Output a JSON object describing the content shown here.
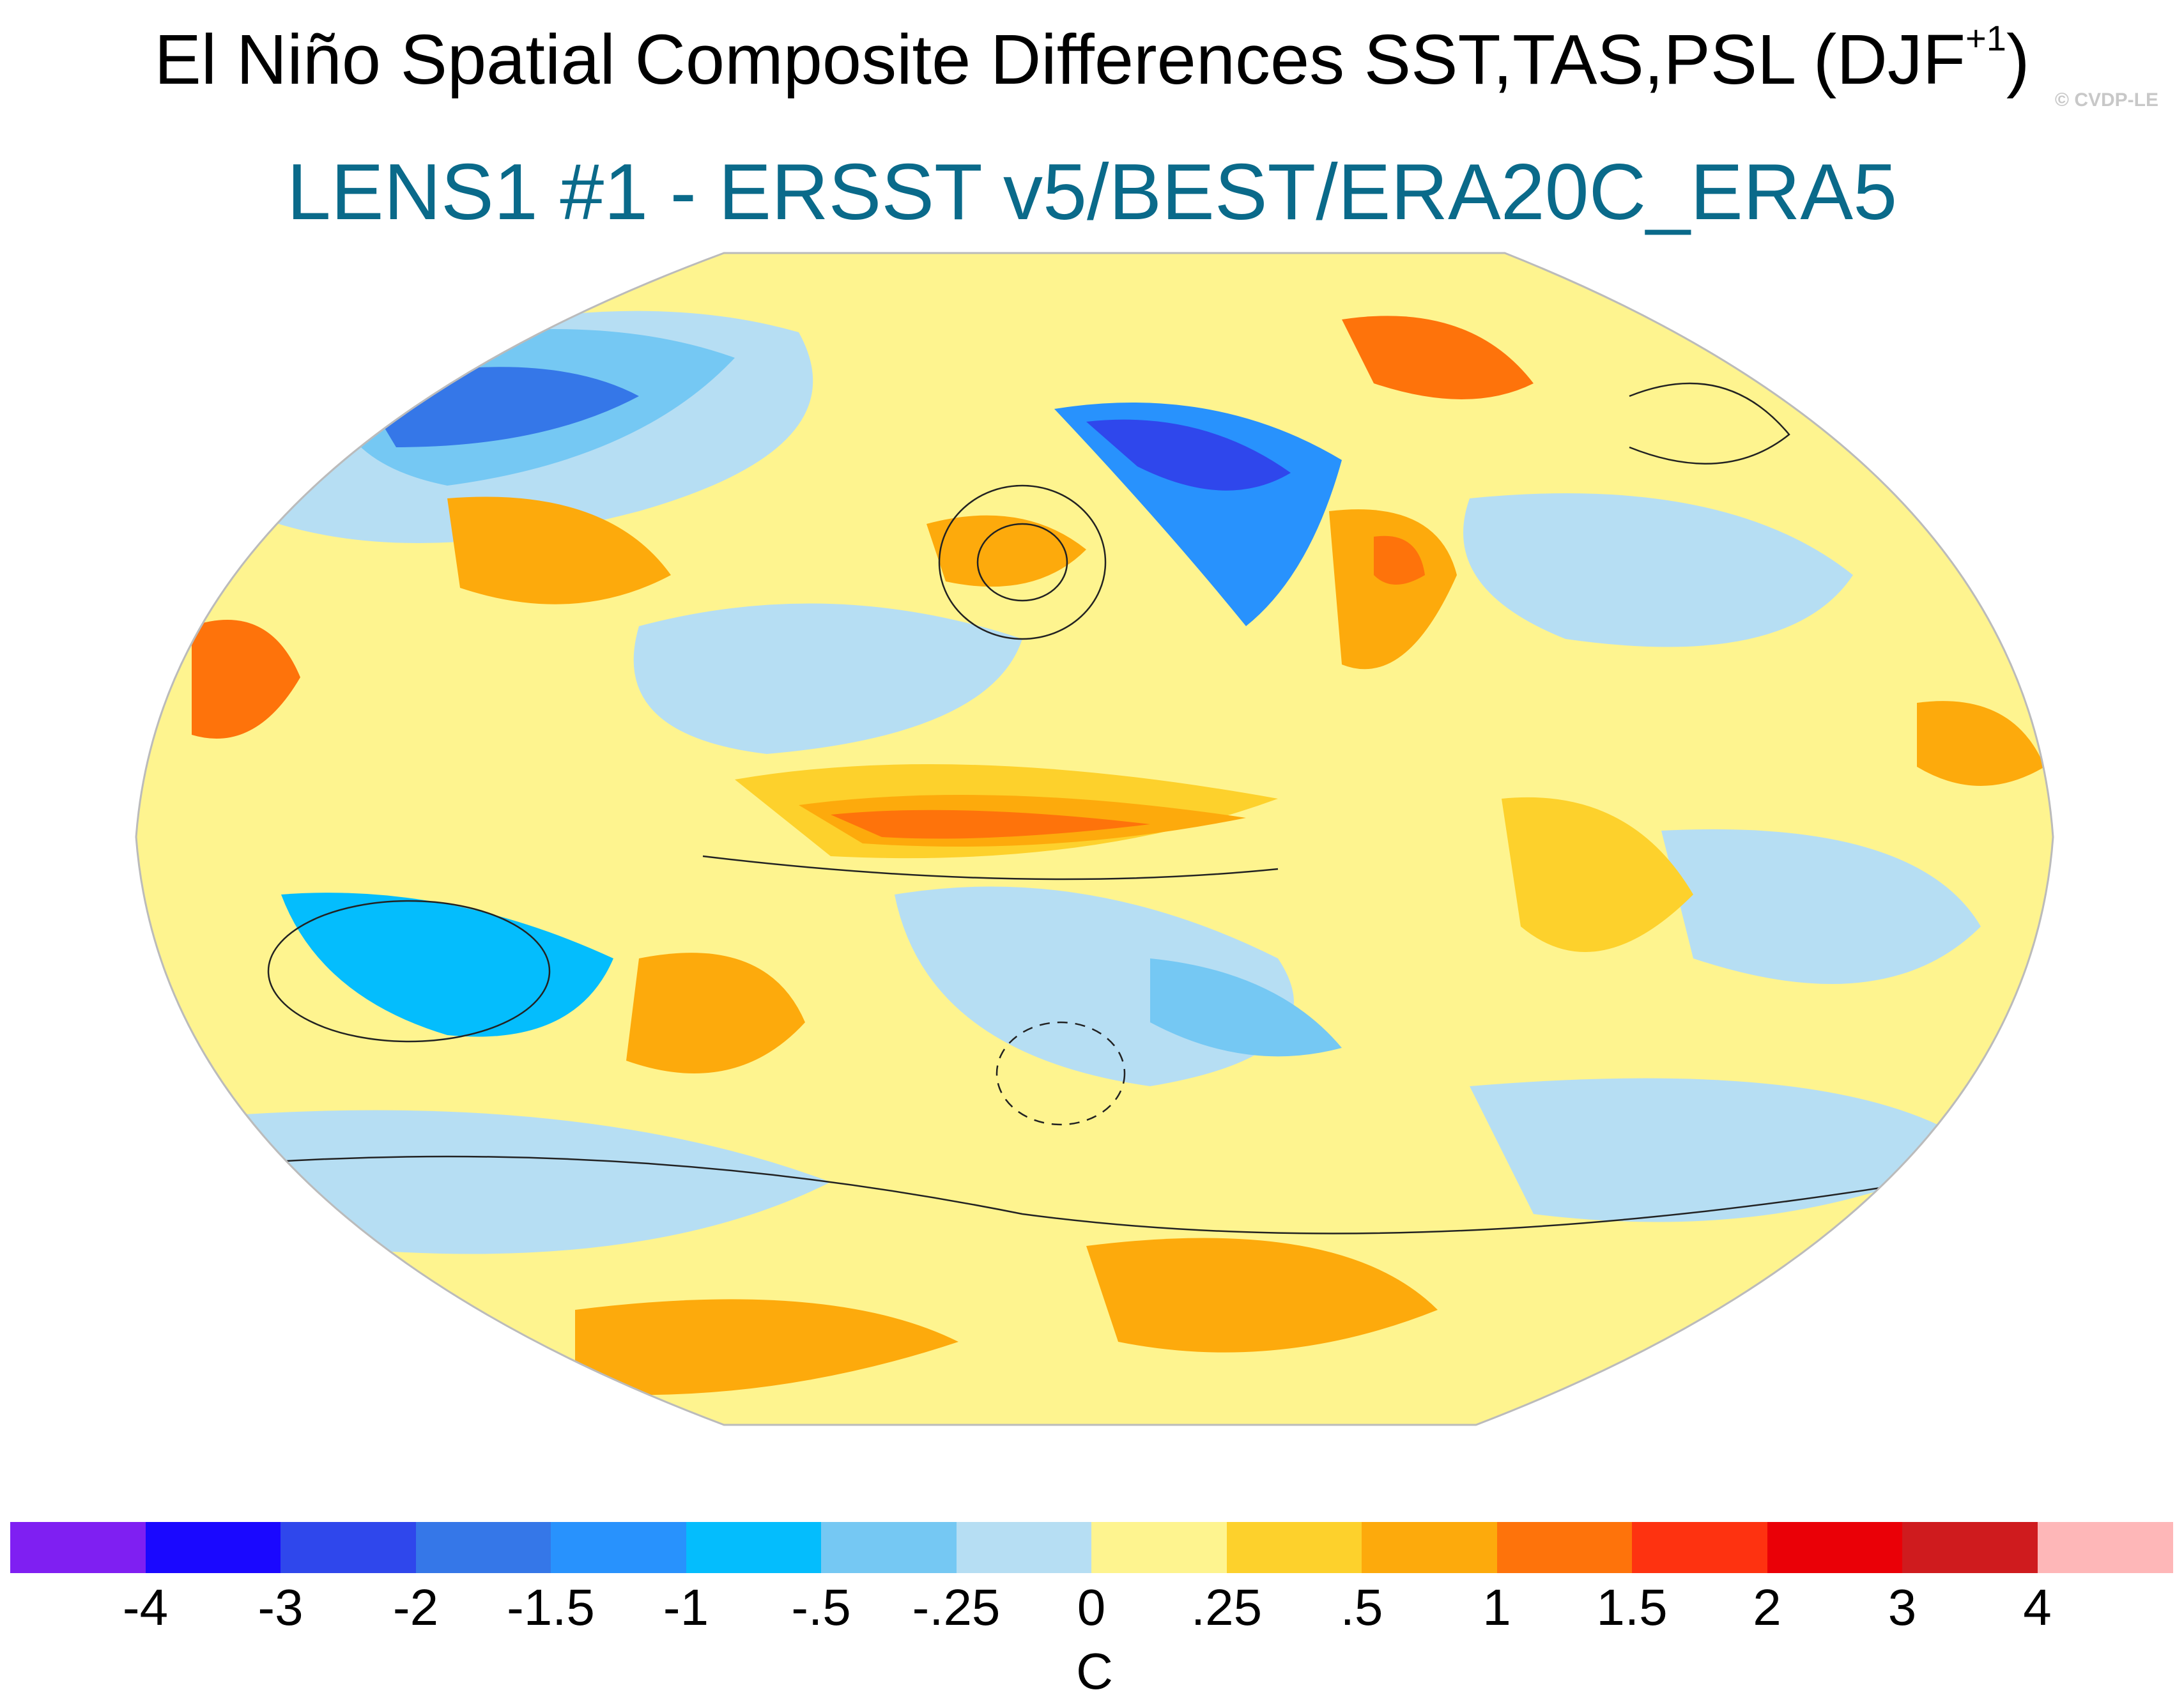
{
  "title": {
    "main": "El Niño Spatial Composite Differences SST,TAS,PSL (DJF",
    "superscript": "+1",
    "close": ")"
  },
  "subtitle": "LENS1 #1 - ERSST v5/BEST/ERA20C_ERA5",
  "credit": "© CVDP-LE",
  "colorbar": {
    "colors": [
      "#7f1ff2",
      "#1a08ff",
      "#2f47ec",
      "#3577e8",
      "#2892fd",
      "#04bdfd",
      "#75c8f3",
      "#b6def3",
      "#fef48f",
      "#fdd12c",
      "#fdaa0c",
      "#fe730b",
      "#fe3210",
      "#ea0007",
      "#cf1b1e",
      "#feb7b8"
    ],
    "labels": [
      "-4",
      "-3",
      "-2",
      "-1.5",
      "-1",
      "-.5",
      "-.25",
      "0",
      ".25",
      ".5",
      "1",
      "1.5",
      "2",
      "3",
      "4"
    ],
    "unit": "C"
  }
}
